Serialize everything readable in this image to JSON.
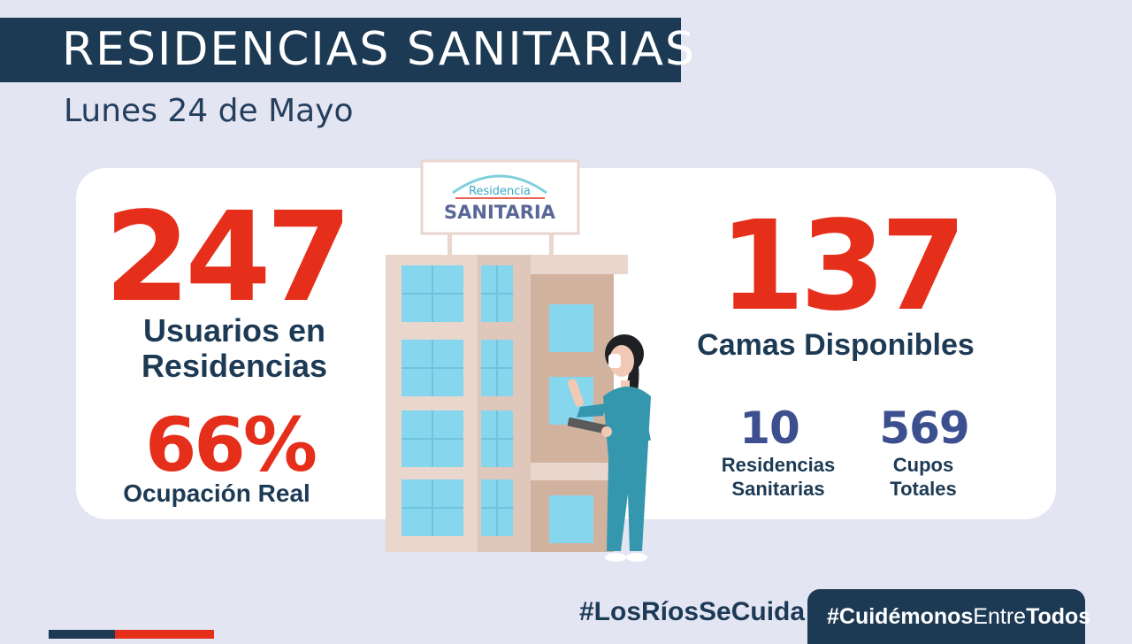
{
  "header": {
    "title": "RESIDENCIAS SANITARIAS",
    "date": "Lunes 24 de Mayo"
  },
  "stats": {
    "usuarios": {
      "value": "247",
      "label_line1": "Usuarios en",
      "label_line2": "Residencias"
    },
    "ocupacion": {
      "value": "66%",
      "label": "Ocupación Real"
    },
    "camas": {
      "value": "137",
      "label": "Camas Disponibles"
    },
    "residencias": {
      "value": "10",
      "label_line1": "Residencias",
      "label_line2": "Sanitarias"
    },
    "cupos": {
      "value": "569",
      "label_line1": "Cupos",
      "label_line2": "Totales"
    }
  },
  "sign": {
    "line1": "Residencia",
    "line2": "SANITARIA"
  },
  "footer": {
    "hashtag_left": "#LosRíosSeCuida",
    "hashtag_right_a": "#Cuidémonos",
    "hashtag_right_b": "Entre",
    "hashtag_right_c": "Todos"
  },
  "colors": {
    "navy": "#1d3a55",
    "red": "#e52f1b",
    "background": "#e3e5f3",
    "stat_blue": "#3c4f8f"
  },
  "icons": [
    "building-illustration",
    "nurse-illustration"
  ]
}
